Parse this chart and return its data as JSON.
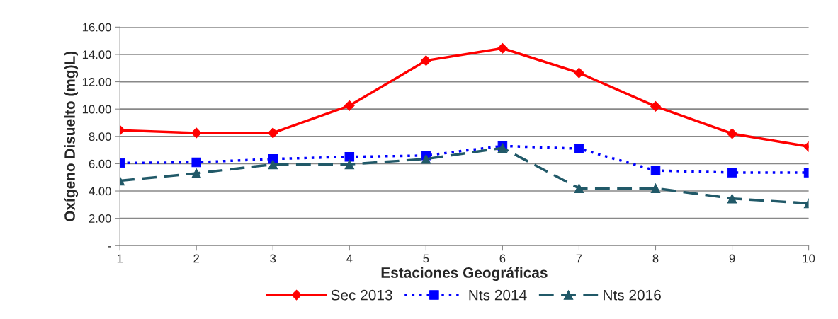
{
  "chart_data": {
    "type": "line",
    "xlabel": "Estaciones Geográficas",
    "ylabel": "Oxígeno Disuelto (mg)L)",
    "categories": [
      "1",
      "2",
      "3",
      "4",
      "5",
      "6",
      "7",
      "8",
      "9",
      "10"
    ],
    "series": [
      {
        "name": "Sec 2013",
        "color": "#ff0000",
        "marker": "diamond",
        "line_style": "solid",
        "values": [
          8.45,
          8.25,
          8.25,
          10.25,
          13.55,
          14.45,
          12.65,
          10.2,
          8.2,
          7.25
        ]
      },
      {
        "name": "Nts 2014",
        "color": "#0000ff",
        "marker": "square",
        "line_style": "dotted",
        "values": [
          6.05,
          6.1,
          6.35,
          6.5,
          6.6,
          7.3,
          7.1,
          5.5,
          5.35,
          5.35
        ]
      },
      {
        "name": "Nts 2016",
        "color": "#215968",
        "marker": "triangle",
        "line_style": "dashed",
        "values": [
          4.75,
          5.3,
          5.95,
          5.95,
          6.35,
          7.15,
          4.2,
          4.2,
          3.45,
          3.1
        ]
      }
    ],
    "ylim": [
      0,
      16
    ],
    "yticks": [
      {
        "value": 0,
        "label": "-"
      },
      {
        "value": 2,
        "label": "2.00"
      },
      {
        "value": 4,
        "label": "4.00"
      },
      {
        "value": 6,
        "label": "6.00"
      },
      {
        "value": 8,
        "label": "8.00"
      },
      {
        "value": 10,
        "label": "10.00"
      },
      {
        "value": 12,
        "label": "12.00"
      },
      {
        "value": 14,
        "label": "14.00"
      },
      {
        "value": 16,
        "label": "16.00"
      }
    ],
    "grid": "y",
    "legend": "bottom"
  }
}
